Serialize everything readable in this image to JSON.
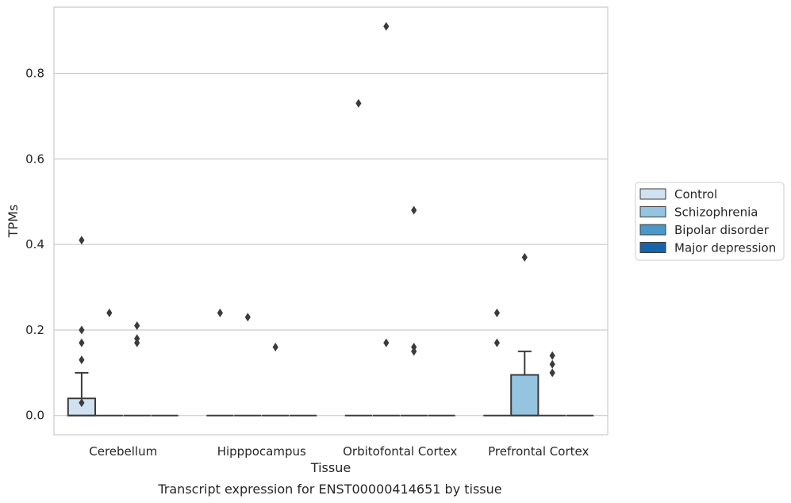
{
  "chart_data": {
    "type": "box",
    "title": "",
    "caption": "Transcript expression for ENST00000414651 by tissue",
    "xlabel": "Tissue",
    "ylabel": "TPMs",
    "ylim": [
      -0.045,
      0.955
    ],
    "yticks": [
      0.0,
      0.2,
      0.4,
      0.6,
      0.8
    ],
    "ytick_labels": [
      "0.0",
      "0.2",
      "0.4",
      "0.6",
      "0.8"
    ],
    "grid": "horizontal",
    "legend_position": "right",
    "categories": [
      "Cerebellum",
      "Hipppocampus",
      "Orbitofontal Cortex",
      "Prefrontal Cortex"
    ],
    "series": [
      {
        "name": "Control",
        "color": "#d0e1f2",
        "boxes": [
          {
            "q1": 0.0,
            "median": 0.0,
            "q3": 0.04,
            "whisker_low": 0.0,
            "whisker_high": 0.1,
            "outliers": [
              0.41,
              0.2,
              0.17,
              0.13,
              0.03
            ]
          },
          {
            "q1": 0.0,
            "median": 0.0,
            "q3": 0.0,
            "whisker_low": 0.0,
            "whisker_high": 0.0,
            "outliers": [
              0.24
            ]
          },
          {
            "q1": 0.0,
            "median": 0.0,
            "q3": 0.0,
            "whisker_low": 0.0,
            "whisker_high": 0.0,
            "outliers": [
              0.73
            ]
          },
          {
            "q1": 0.0,
            "median": 0.0,
            "q3": 0.0,
            "whisker_low": 0.0,
            "whisker_high": 0.0,
            "outliers": [
              0.24,
              0.17
            ]
          }
        ]
      },
      {
        "name": "Schizophrenia",
        "color": "#94c4df",
        "boxes": [
          {
            "q1": 0.0,
            "median": 0.0,
            "q3": 0.0,
            "whisker_low": 0.0,
            "whisker_high": 0.0,
            "outliers": [
              0.24
            ]
          },
          {
            "q1": 0.0,
            "median": 0.0,
            "q3": 0.0,
            "whisker_low": 0.0,
            "whisker_high": 0.0,
            "outliers": [
              0.23
            ]
          },
          {
            "q1": 0.0,
            "median": 0.0,
            "q3": 0.0,
            "whisker_low": 0.0,
            "whisker_high": 0.0,
            "outliers": [
              0.91,
              0.17
            ]
          },
          {
            "q1": 0.0,
            "median": 0.0,
            "q3": 0.095,
            "whisker_low": 0.0,
            "whisker_high": 0.15,
            "outliers": [
              0.37
            ]
          }
        ]
      },
      {
        "name": "Bipolar disorder",
        "color": "#4a98c9",
        "boxes": [
          {
            "q1": 0.0,
            "median": 0.0,
            "q3": 0.0,
            "whisker_low": 0.0,
            "whisker_high": 0.0,
            "outliers": [
              0.21,
              0.18,
              0.17
            ]
          },
          {
            "q1": 0.0,
            "median": 0.0,
            "q3": 0.0,
            "whisker_low": 0.0,
            "whisker_high": 0.0,
            "outliers": [
              0.16
            ]
          },
          {
            "q1": 0.0,
            "median": 0.0,
            "q3": 0.0,
            "whisker_low": 0.0,
            "whisker_high": 0.0,
            "outliers": [
              0.48,
              0.16,
              0.15
            ]
          },
          {
            "q1": 0.0,
            "median": 0.0,
            "q3": 0.0,
            "whisker_low": 0.0,
            "whisker_high": 0.0,
            "outliers": [
              0.14,
              0.12,
              0.1
            ]
          }
        ]
      },
      {
        "name": "Major depression",
        "color": "#1764ab",
        "boxes": [
          {
            "q1": 0.0,
            "median": 0.0,
            "q3": 0.0,
            "whisker_low": 0.0,
            "whisker_high": 0.0,
            "outliers": []
          },
          {
            "q1": 0.0,
            "median": 0.0,
            "q3": 0.0,
            "whisker_low": 0.0,
            "whisker_high": 0.0,
            "outliers": []
          },
          {
            "q1": 0.0,
            "median": 0.0,
            "q3": 0.0,
            "whisker_low": 0.0,
            "whisker_high": 0.0,
            "outliers": []
          },
          {
            "q1": 0.0,
            "median": 0.0,
            "q3": 0.0,
            "whisker_low": 0.0,
            "whisker_high": 0.0,
            "outliers": []
          }
        ]
      }
    ]
  }
}
